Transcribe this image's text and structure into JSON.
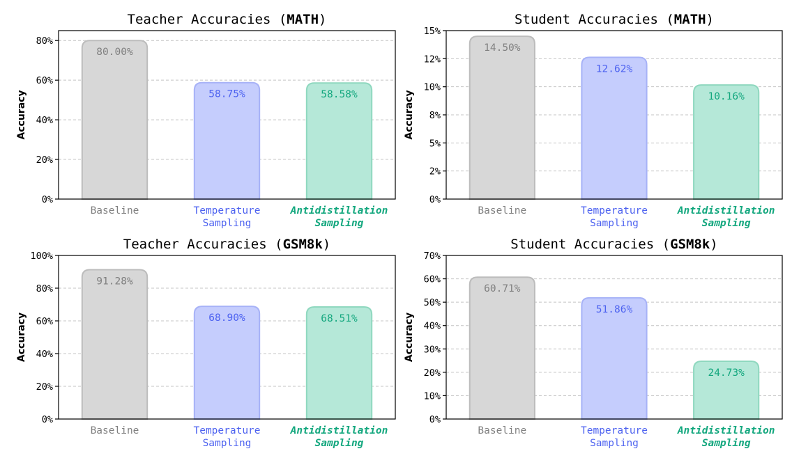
{
  "colors": {
    "baseline_fill": "#d7d7d7",
    "baseline_edge": "#bcbcbc",
    "baseline_text": "#808080",
    "temp_fill": "#c5cdfd",
    "temp_edge": "#a7b2f7",
    "temp_text": "#4e63f0",
    "anti_fill": "#b5e8d8",
    "anti_edge": "#8fd8bf",
    "anti_text": "#13a77e",
    "grid": "#c4c4c4",
    "axis": "#000000"
  },
  "chart_data": [
    {
      "type": "bar",
      "title_prefix": "Teacher Accuracies (",
      "title_bold": "MATH",
      "title_suffix": ")",
      "ylabel": "Accuracy",
      "categories": [
        {
          "lines": [
            "Baseline"
          ],
          "style": "baseline"
        },
        {
          "lines": [
            "Temperature",
            "Sampling"
          ],
          "style": "temp"
        },
        {
          "lines": [
            "Antidistillation",
            "Sampling"
          ],
          "style": "anti"
        }
      ],
      "values": [
        80.0,
        58.75,
        58.58
      ],
      "value_labels": [
        "80.00%",
        "58.75%",
        "58.58%"
      ],
      "ylim": [
        0,
        85
      ],
      "yticks": [
        0,
        20,
        40,
        60,
        80
      ],
      "ytick_labels": [
        "0%",
        "20%",
        "40%",
        "60%",
        "80%"
      ]
    },
    {
      "type": "bar",
      "title_prefix": "Student Accuracies (",
      "title_bold": "MATH",
      "title_suffix": ")",
      "ylabel": "Accuracy",
      "categories": [
        {
          "lines": [
            "Baseline"
          ],
          "style": "baseline"
        },
        {
          "lines": [
            "Temperature",
            "Sampling"
          ],
          "style": "temp"
        },
        {
          "lines": [
            "Antidistillation",
            "Sampling"
          ],
          "style": "anti"
        }
      ],
      "values": [
        14.5,
        12.62,
        10.16
      ],
      "value_labels": [
        "14.50%",
        "12.62%",
        "10.16%"
      ],
      "ylim": [
        0,
        15
      ],
      "yticks": [
        0,
        2.5,
        5,
        7.5,
        10,
        12.5,
        15
      ],
      "ytick_labels": [
        "0%",
        "2%",
        "5%",
        "8%",
        "10%",
        "12%",
        "15%"
      ]
    },
    {
      "type": "bar",
      "title_prefix": "Teacher Accuracies (",
      "title_bold": "GSM8k",
      "title_suffix": ")",
      "ylabel": "Accuracy",
      "categories": [
        {
          "lines": [
            "Baseline"
          ],
          "style": "baseline"
        },
        {
          "lines": [
            "Temperature",
            "Sampling"
          ],
          "style": "temp"
        },
        {
          "lines": [
            "Antidistillation",
            "Sampling"
          ],
          "style": "anti"
        }
      ],
      "values": [
        91.28,
        68.9,
        68.51
      ],
      "value_labels": [
        "91.28%",
        "68.90%",
        "68.51%"
      ],
      "ylim": [
        0,
        100
      ],
      "yticks": [
        0,
        20,
        40,
        60,
        80,
        100
      ],
      "ytick_labels": [
        "0%",
        "20%",
        "40%",
        "60%",
        "80%",
        "100%"
      ]
    },
    {
      "type": "bar",
      "title_prefix": "Student Accuracies (",
      "title_bold": "GSM8k",
      "title_suffix": ")",
      "ylabel": "Accuracy",
      "categories": [
        {
          "lines": [
            "Baseline"
          ],
          "style": "baseline"
        },
        {
          "lines": [
            "Temperature",
            "Sampling"
          ],
          "style": "temp"
        },
        {
          "lines": [
            "Antidistillation",
            "Sampling"
          ],
          "style": "anti"
        }
      ],
      "values": [
        60.71,
        51.86,
        24.73
      ],
      "value_labels": [
        "60.71%",
        "51.86%",
        "24.73%"
      ],
      "ylim": [
        0,
        70
      ],
      "yticks": [
        0,
        10,
        20,
        30,
        40,
        50,
        60,
        70
      ],
      "ytick_labels": [
        "0%",
        "10%",
        "20%",
        "30%",
        "40%",
        "50%",
        "60%",
        "70%"
      ]
    }
  ]
}
